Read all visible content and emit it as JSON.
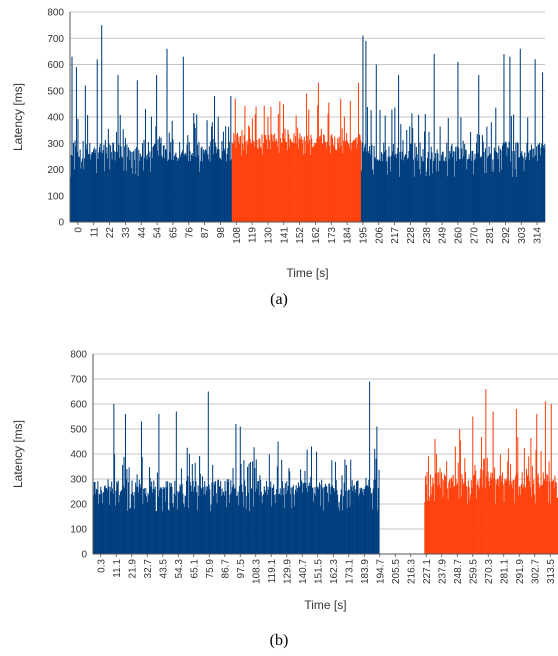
{
  "colors": {
    "base": "#003f7f",
    "highlight": "#ff420e",
    "grid": "#b3b3b3",
    "axis": "#555555"
  },
  "chart_data": [
    {
      "type": "bar",
      "caption": "(a)",
      "xlabel": "Time [s]",
      "ylabel": "Latency [ms]",
      "ylim": [
        0,
        800
      ],
      "yticks": [
        0,
        100,
        200,
        300,
        400,
        500,
        600,
        700,
        800
      ],
      "xticks": [
        "0",
        "11",
        "22",
        "33",
        "44",
        "54",
        "65",
        "76",
        "87",
        "98",
        "108",
        "119",
        "130",
        "141",
        "152",
        "162",
        "173",
        "184",
        "195",
        "206",
        "217",
        "228",
        "238",
        "249",
        "260",
        "270",
        "281",
        "292",
        "303",
        "314"
      ],
      "xrange": [
        0,
        320
      ],
      "grid": true,
      "series": [
        {
          "color": "base",
          "x_start": 0,
          "x_end": 109,
          "baseline": [
            170,
            230,
            270,
            300
          ],
          "spikes": [
            [
              1,
              630
            ],
            [
              4,
              590
            ],
            [
              10,
              520
            ],
            [
              18,
              620
            ],
            [
              21,
              750
            ],
            [
              32,
              560
            ],
            [
              45,
              540
            ],
            [
              58,
              560
            ],
            [
              65,
              660
            ],
            [
              76,
              630
            ],
            [
              97,
              480
            ],
            [
              108,
              480
            ]
          ]
        },
        {
          "color": "highlight",
          "x_start": 109,
          "x_end": 196,
          "baseline": [
            250,
            280,
            300,
            330
          ],
          "spikes": [
            [
              111,
              470
            ],
            [
              125,
              440
            ],
            [
              141,
              460
            ],
            [
              159,
              490
            ],
            [
              167,
              530
            ],
            [
              182,
              470
            ],
            [
              194,
              530
            ]
          ]
        },
        {
          "color": "base",
          "x_start": 196,
          "x_end": 320,
          "baseline": [
            170,
            230,
            270,
            300
          ],
          "spikes": [
            [
              197,
              710
            ],
            [
              199,
              690
            ],
            [
              206,
              600
            ],
            [
              221,
              560
            ],
            [
              245,
              640
            ],
            [
              261,
              610
            ],
            [
              275,
              560
            ],
            [
              292,
              640
            ],
            [
              296,
              630
            ],
            [
              303,
              660
            ],
            [
              313,
              620
            ],
            [
              318,
              570
            ]
          ]
        }
      ]
    },
    {
      "type": "bar",
      "caption": "(b)",
      "xlabel": "Time [s]",
      "ylabel": "Latency [ms]",
      "ylim": [
        0,
        800
      ],
      "yticks": [
        0,
        100,
        200,
        300,
        400,
        500,
        600,
        700,
        800
      ],
      "xticks": [
        "0.3",
        "11.1",
        "21.9",
        "32.7",
        "43.5",
        "54.3",
        "65.1",
        "75.9",
        "86.7",
        "97.5",
        "108.3",
        "119.1",
        "129.9",
        "140.7",
        "151.5",
        "162.3",
        "173.1",
        "183.9",
        "194.7",
        "205.5",
        "216.3",
        "227.1",
        "237.9",
        "248.7",
        "259.5",
        "270.3",
        "281.1",
        "291.9",
        "302.7",
        "313.5"
      ],
      "xrange": [
        0,
        320
      ],
      "grid": true,
      "series": [
        {
          "color": "base",
          "x_start": 0,
          "x_end": 197,
          "baseline": [
            170,
            230,
            260,
            290
          ],
          "spikes": [
            [
              14,
              600
            ],
            [
              22,
              560
            ],
            [
              33,
              530
            ],
            [
              45,
              560
            ],
            [
              57,
              570
            ],
            [
              79,
              650
            ],
            [
              98,
              520
            ],
            [
              101,
              510
            ],
            [
              127,
              450
            ],
            [
              150,
              430
            ],
            [
              190,
              690
            ],
            [
              195,
              510
            ]
          ]
        },
        {
          "color": "highlight",
          "x_start": 228,
          "x_end": 320,
          "baseline": [
            200,
            260,
            290,
            330
          ],
          "spikes": [
            [
              235,
              460
            ],
            [
              252,
              500
            ],
            [
              261,
              550
            ],
            [
              270,
              660
            ],
            [
              275,
              570
            ],
            [
              291,
              580
            ],
            [
              305,
              560
            ],
            [
              311,
              610
            ],
            [
              315,
              600
            ]
          ]
        }
      ]
    }
  ]
}
